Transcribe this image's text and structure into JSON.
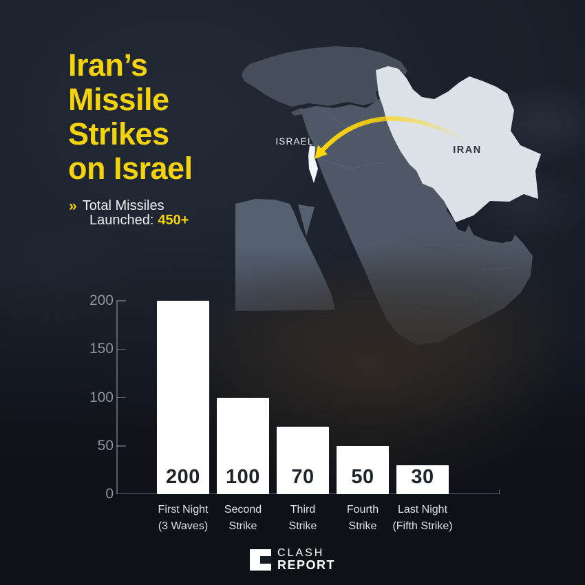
{
  "header": {
    "title_lines": [
      "Iran’s",
      "Missile",
      "Strikes",
      "on Israel"
    ],
    "subtitle": {
      "marker": "»",
      "line1": "Total Missiles",
      "line2_label": "Launched:",
      "total_value": "450+"
    }
  },
  "map": {
    "israel_label": "ISRAEL",
    "iran_label": "IRAN",
    "arrow_color": "#FFD60A",
    "iran_fill": "#dde2e9",
    "israel_fill": "#f3f6f8",
    "land_fill": "#4e5866"
  },
  "chart_data": {
    "type": "bar",
    "title": "",
    "xlabel": "",
    "ylabel": "",
    "categories": [
      "First Night\n(3 Waves)",
      "Second\nStrike",
      "Third\nStrike",
      "Fourth\nStrike",
      "Last Night\n(Fifth Strike)"
    ],
    "values": [
      200,
      100,
      70,
      50,
      30
    ],
    "value_labels": [
      "200",
      "100",
      "70",
      "50",
      "30"
    ],
    "yticks": [
      0,
      50,
      100,
      150,
      200
    ],
    "ylim": [
      0,
      200
    ],
    "bar_color": "#ffffff",
    "grid": false,
    "legend": null
  },
  "footer": {
    "brand_line1": "CLASH",
    "brand_line2": "REPORT"
  },
  "colors": {
    "accent_yellow": "#F4D30D",
    "arrow_yellow": "#FFD60A",
    "background": "#1a1f28",
    "bar_white": "#ffffff",
    "axis_text": "#8d949d",
    "category_text": "#dde1e6",
    "bar_value_text": "#1d232b"
  }
}
